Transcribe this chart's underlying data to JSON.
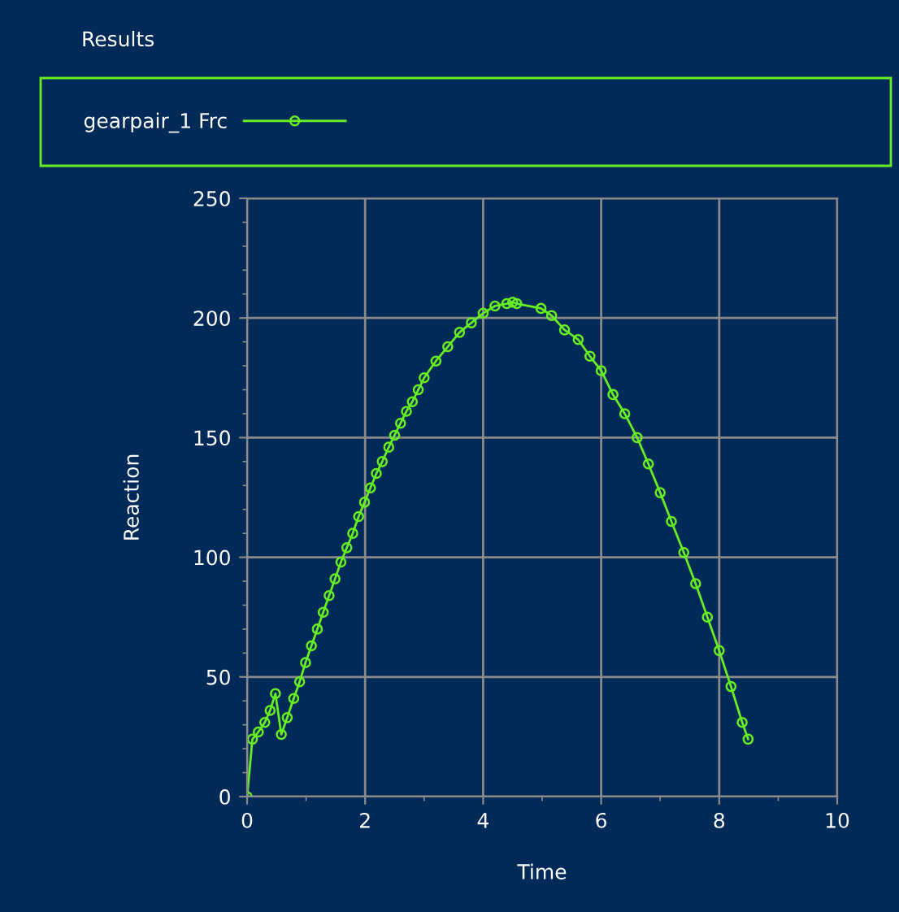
{
  "chart_data": {
    "type": "line",
    "title": "Results",
    "xlabel": "Time",
    "ylabel": "Reaction",
    "x": [
      0,
      0.09,
      0.19,
      0.3,
      0.39,
      0.48,
      0.58,
      0.68,
      0.79,
      0.89,
      0.99,
      1.09,
      1.19,
      1.29,
      1.39,
      1.49,
      1.59,
      1.69,
      1.79,
      1.89,
      1.99,
      2.09,
      2.19,
      2.29,
      2.4,
      2.5,
      2.6,
      2.7,
      2.8,
      2.9,
      3.0,
      3.2,
      3.4,
      3.6,
      3.8,
      4.0,
      4.2,
      4.4,
      4.5,
      4.57,
      4.98,
      5.16,
      5.38,
      5.61,
      5.81,
      6.0,
      6.2,
      6.4,
      6.61,
      6.8,
      7.0,
      7.19,
      7.4,
      7.6,
      7.8,
      8.0,
      8.2,
      8.39,
      8.49
    ],
    "series": [
      {
        "name": "gearpair_1 Frc",
        "color": "#66ee22",
        "values": [
          0,
          24,
          27,
          31,
          36,
          43,
          26,
          33,
          41,
          48,
          56,
          63,
          70,
          77,
          84,
          91,
          98,
          104,
          110,
          117,
          123,
          129,
          135,
          140,
          146,
          151,
          156,
          161,
          165,
          170,
          175,
          182,
          188,
          194,
          198,
          202,
          205,
          206,
          206.6,
          206,
          204,
          201,
          195,
          191,
          184,
          178,
          168,
          160,
          150,
          139,
          127,
          115,
          102,
          89,
          75,
          61,
          46,
          31,
          24
        ]
      }
    ],
    "xlim": [
      0,
      10
    ],
    "xticks": [
      0,
      2,
      4,
      6,
      8,
      10
    ],
    "ylim": [
      0,
      250
    ],
    "yticks": [
      0,
      50,
      100,
      150,
      200,
      250
    ],
    "grid": true,
    "legend": "top",
    "marker": "circle",
    "line_style": "solid"
  }
}
